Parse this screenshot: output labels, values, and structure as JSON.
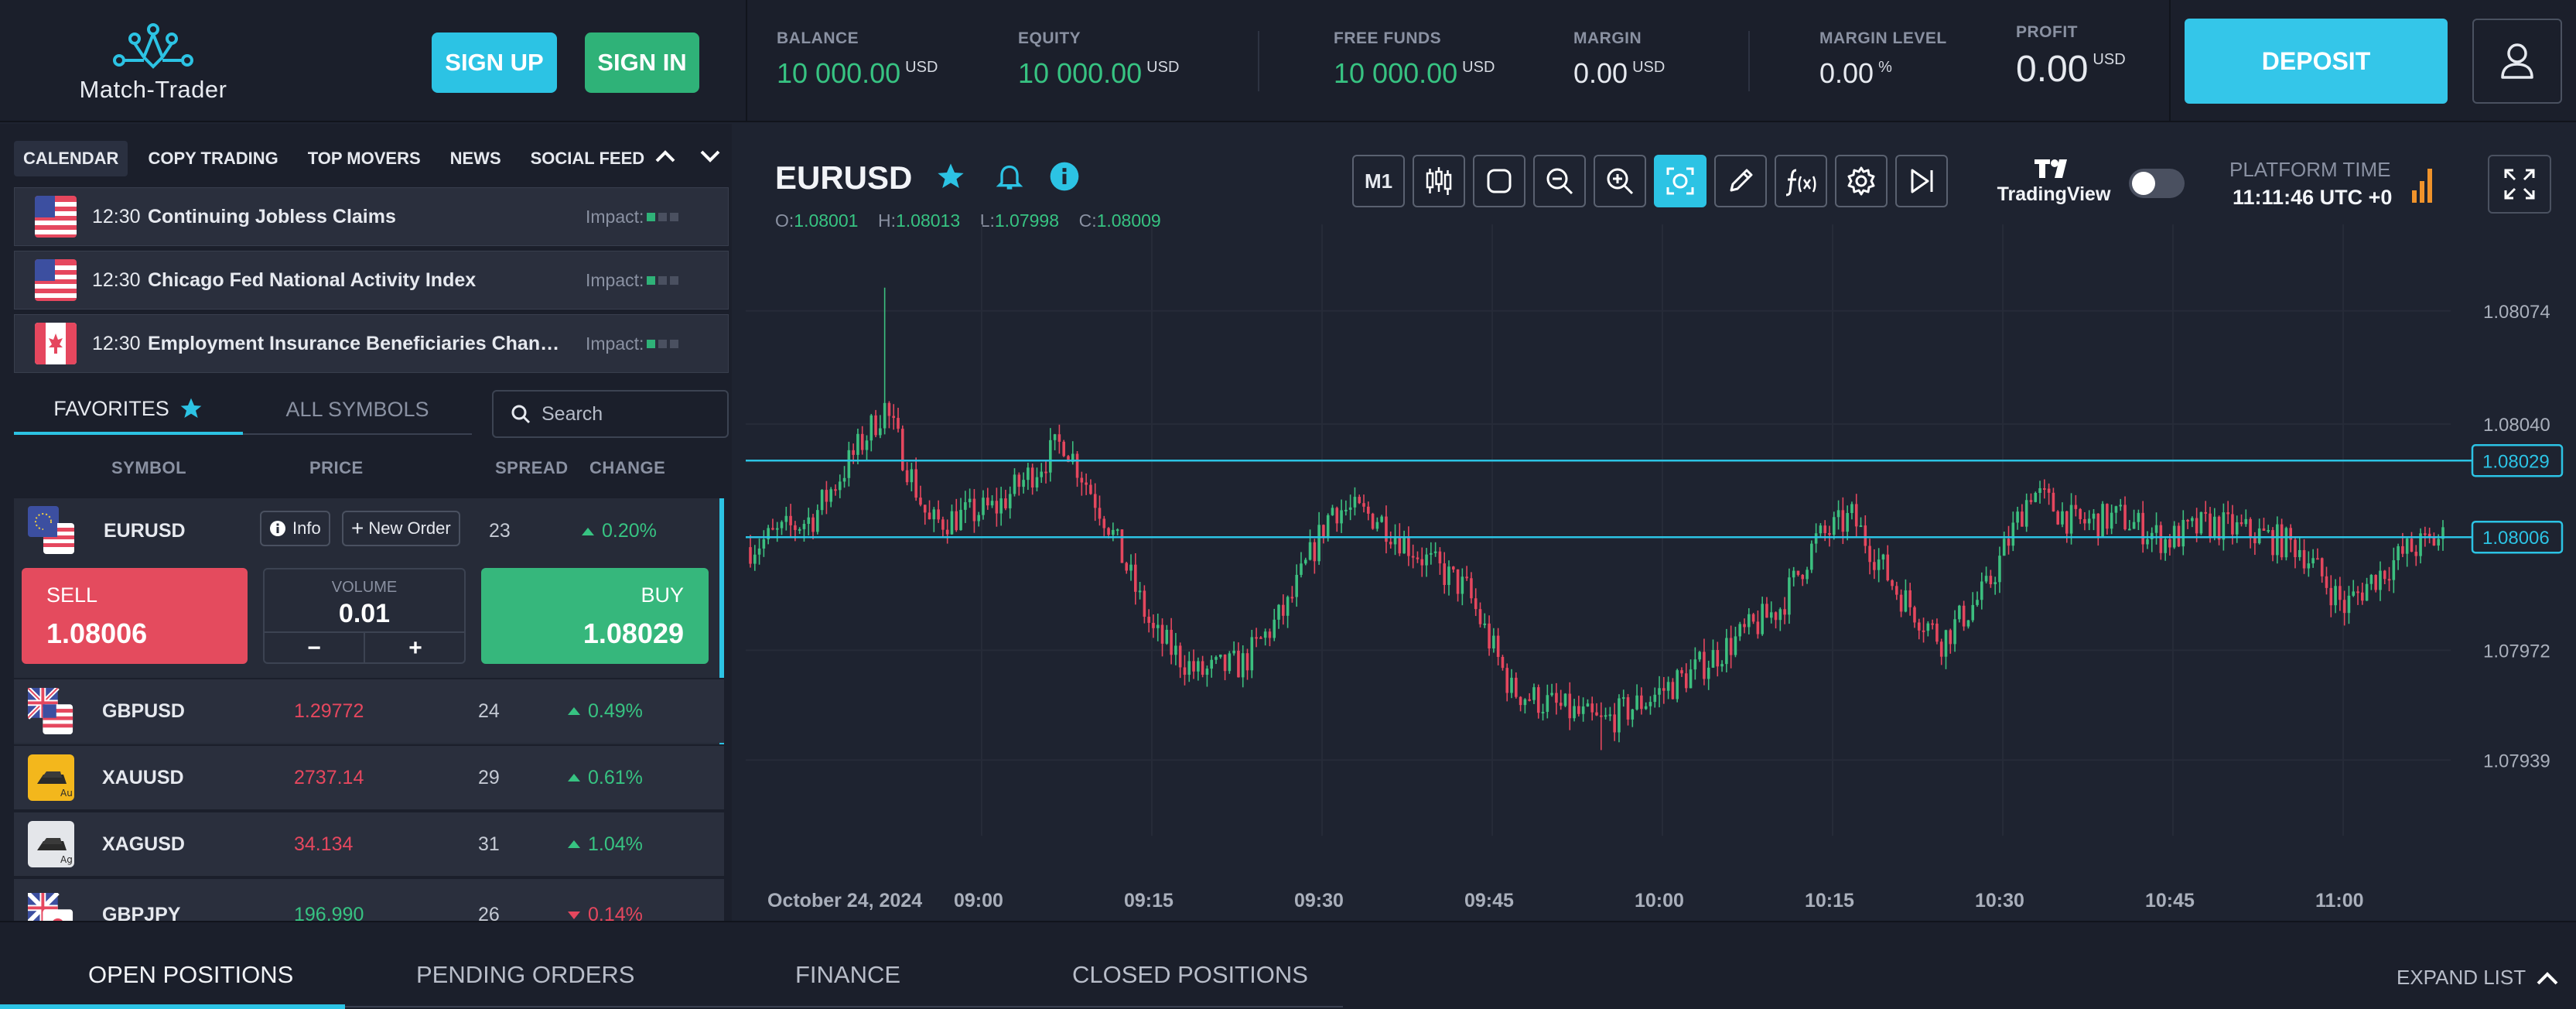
{
  "header": {
    "logo_text": "Match-Trader",
    "signup_label": "SIGN UP",
    "signin_label": "SIGN IN",
    "stats": {
      "balance": {
        "label": "BALANCE",
        "value": "10 000.00",
        "unit": "USD"
      },
      "equity": {
        "label": "EQUITY",
        "value": "10 000.00",
        "unit": "USD"
      },
      "free_funds": {
        "label": "FREE FUNDS",
        "value": "10 000.00",
        "unit": "USD"
      },
      "margin": {
        "label": "MARGIN",
        "value": "0.00",
        "unit": "USD"
      },
      "margin_level": {
        "label": "MARGIN LEVEL",
        "value": "0.00",
        "unit": "%"
      },
      "profit": {
        "label": "PROFIT",
        "value": "0.00",
        "unit": "USD"
      }
    },
    "deposit_label": "DEPOSIT",
    "user_icon": "user-icon"
  },
  "news_tabs": [
    "CALENDAR",
    "COPY TRADING",
    "TOP MOVERS",
    "NEWS",
    "SOCIAL FEED"
  ],
  "calendar": [
    {
      "flag": "us",
      "time": "12:30",
      "title": "Continuing Jobless Claims",
      "impact_label": "Impact:",
      "impact_level": 1
    },
    {
      "flag": "us",
      "time": "12:30",
      "title": "Chicago Fed National Activity Index",
      "impact_label": "Impact:",
      "impact_level": 1
    },
    {
      "flag": "ca",
      "time": "12:30",
      "title": "Employment Insurance Beneficiaries Change (MoM)",
      "impact_label": "Impact:",
      "impact_level": 1
    }
  ],
  "symbol_tabs": {
    "favorites": "FAVORITES",
    "all": "ALL SYMBOLS"
  },
  "search": {
    "placeholder": "Search"
  },
  "columns": {
    "symbol": "SYMBOL",
    "price": "PRICE",
    "spread": "SPREAD",
    "change": "CHANGE"
  },
  "active_symbol": {
    "name": "EURUSD",
    "info_label": "Info",
    "new_order_label": "New Order",
    "spread": "23",
    "change": "0.20%",
    "sell_label": "SELL",
    "sell_price": "1.08006",
    "buy_label": "BUY",
    "buy_price": "1.08029",
    "volume_label": "VOLUME",
    "volume_value": "0.01",
    "minus": "−",
    "plus": "+"
  },
  "symbols": [
    {
      "name": "GBPUSD",
      "price": "1.29772",
      "price_dir": "down",
      "spread": "24",
      "change": "0.49%",
      "change_dir": "up"
    },
    {
      "name": "XAUUSD",
      "price": "2737.14",
      "price_dir": "down",
      "spread": "29",
      "change": "0.61%",
      "change_dir": "up"
    },
    {
      "name": "XAGUSD",
      "price": "34.134",
      "price_dir": "down",
      "spread": "31",
      "change": "1.04%",
      "change_dir": "up"
    },
    {
      "name": "GBPJPY",
      "price": "196.990",
      "price_dir": "up",
      "spread": "26",
      "change": "0.14%",
      "change_dir": "down"
    }
  ],
  "chart": {
    "symbol": "EURUSD",
    "ohlc": {
      "o_label": "O:",
      "o": "1.08001",
      "h_label": "H:",
      "h": "1.08013",
      "l_label": "L:",
      "l": "1.07998",
      "c_label": "C:",
      "c": "1.08009"
    },
    "timeframe": "M1",
    "tradingview_label": "TradingView",
    "platform_time_label": "PLATFORM TIME",
    "platform_time": "11:11:46 UTC +0"
  },
  "chart_data": {
    "type": "candlestick",
    "date_label": "October 24, 2024",
    "x_ticks": [
      "09:00",
      "09:15",
      "09:30",
      "09:45",
      "10:00",
      "10:15",
      "10:30",
      "10:45",
      "11:00"
    ],
    "y_ticks": [
      "1.08074",
      "1.08040",
      "1.07972",
      "1.07939"
    ],
    "ylim": [
      1.079,
      1.081
    ],
    "price_lines": [
      {
        "label": "1.08029",
        "value": 1.08029,
        "color": "#2cc3e4"
      },
      {
        "label": "1.08006",
        "value": 1.08006,
        "color": "#2cc3e4"
      }
    ],
    "up_color": "#3cbf7f",
    "down_color": "#e5475e",
    "candles": []
  },
  "bottom_tabs": [
    "OPEN POSITIONS",
    "PENDING ORDERS",
    "FINANCE",
    "CLOSED POSITIONS"
  ],
  "expand_label": "EXPAND LIST"
}
